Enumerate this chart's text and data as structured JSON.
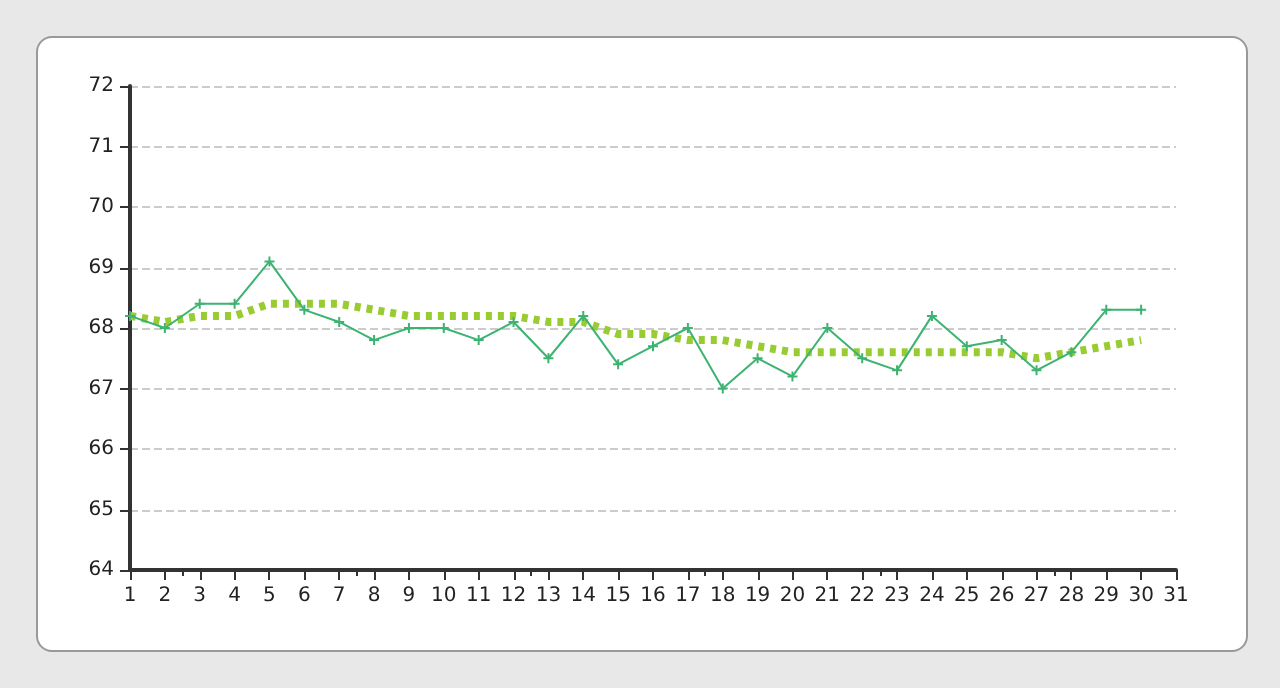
{
  "chart_data": {
    "type": "line",
    "x": [
      1,
      2,
      3,
      4,
      5,
      6,
      7,
      8,
      9,
      10,
      11,
      12,
      13,
      14,
      15,
      16,
      17,
      18,
      19,
      20,
      21,
      22,
      23,
      24,
      25,
      26,
      27,
      28,
      29,
      30
    ],
    "series": [
      {
        "color": "#3cb371",
        "marker": "cross",
        "line_style": "solid",
        "values": [
          68.2,
          68.0,
          68.4,
          68.4,
          69.1,
          68.3,
          68.1,
          67.8,
          68.0,
          68.0,
          67.8,
          68.1,
          67.5,
          68.2,
          67.4,
          67.7,
          68.0,
          67.0,
          67.5,
          67.2,
          68.0,
          67.5,
          67.3,
          68.2,
          67.7,
          67.8,
          67.3,
          67.6,
          68.3,
          68.3
        ]
      },
      {
        "color": "#99cc33",
        "marker": "none",
        "line_style": "dotted",
        "values": [
          68.2,
          68.1,
          68.2,
          68.2,
          68.4,
          68.4,
          68.4,
          68.3,
          68.2,
          68.2,
          68.2,
          68.2,
          68.1,
          68.1,
          67.9,
          67.9,
          67.8,
          67.8,
          67.7,
          67.6,
          67.6,
          67.6,
          67.6,
          67.6,
          67.6,
          67.6,
          67.5,
          67.6,
          67.7,
          67.8
        ]
      }
    ],
    "xlim": [
      1,
      31
    ],
    "xticks": [
      1,
      2,
      3,
      4,
      5,
      6,
      7,
      8,
      9,
      10,
      11,
      12,
      13,
      14,
      15,
      16,
      17,
      18,
      19,
      20,
      21,
      22,
      23,
      24,
      25,
      26,
      27,
      28,
      29,
      30,
      31
    ],
    "ylim": [
      64,
      72
    ],
    "yticks": [
      64,
      65,
      66,
      67,
      68,
      69,
      70,
      71,
      72
    ],
    "grid": "y"
  }
}
